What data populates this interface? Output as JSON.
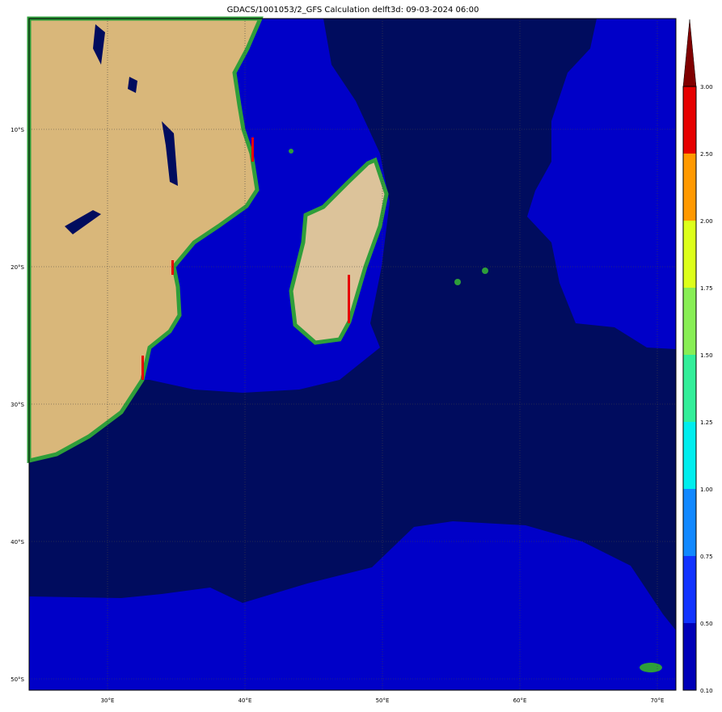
{
  "title": "GDACS/1001053/2_GFS Calculation delft3d: 09-03-2024 06:00",
  "map": {
    "extent": {
      "lon": [
        24.3,
        71.4
      ],
      "lat": [
        -50.9,
        -1.9
      ]
    },
    "x_ticks": [
      "30°E",
      "40°E",
      "50°E",
      "60°E",
      "70°E"
    ],
    "y_ticks": [
      "10°S",
      "20°S",
      "30°S",
      "40°S",
      "50°S"
    ],
    "colors": {
      "deep_ocean": "#000c5e",
      "shallow_ocean": "#0000c8",
      "land": "#d9b77a",
      "coast": "#2e9e3a"
    }
  },
  "colorbar": {
    "labels": [
      "3.00",
      "2.50",
      "2.00",
      "1.75",
      "1.50",
      "1.25",
      "1.00",
      "0.75",
      "0.50",
      "0.10"
    ],
    "colors": [
      "#800000",
      "#e60000",
      "#ff9900",
      "#ddff1a",
      "#88ee55",
      "#33ee99",
      "#00eeee",
      "#1188ff",
      "#1133ff",
      "#0000b8"
    ],
    "extend": "max"
  }
}
